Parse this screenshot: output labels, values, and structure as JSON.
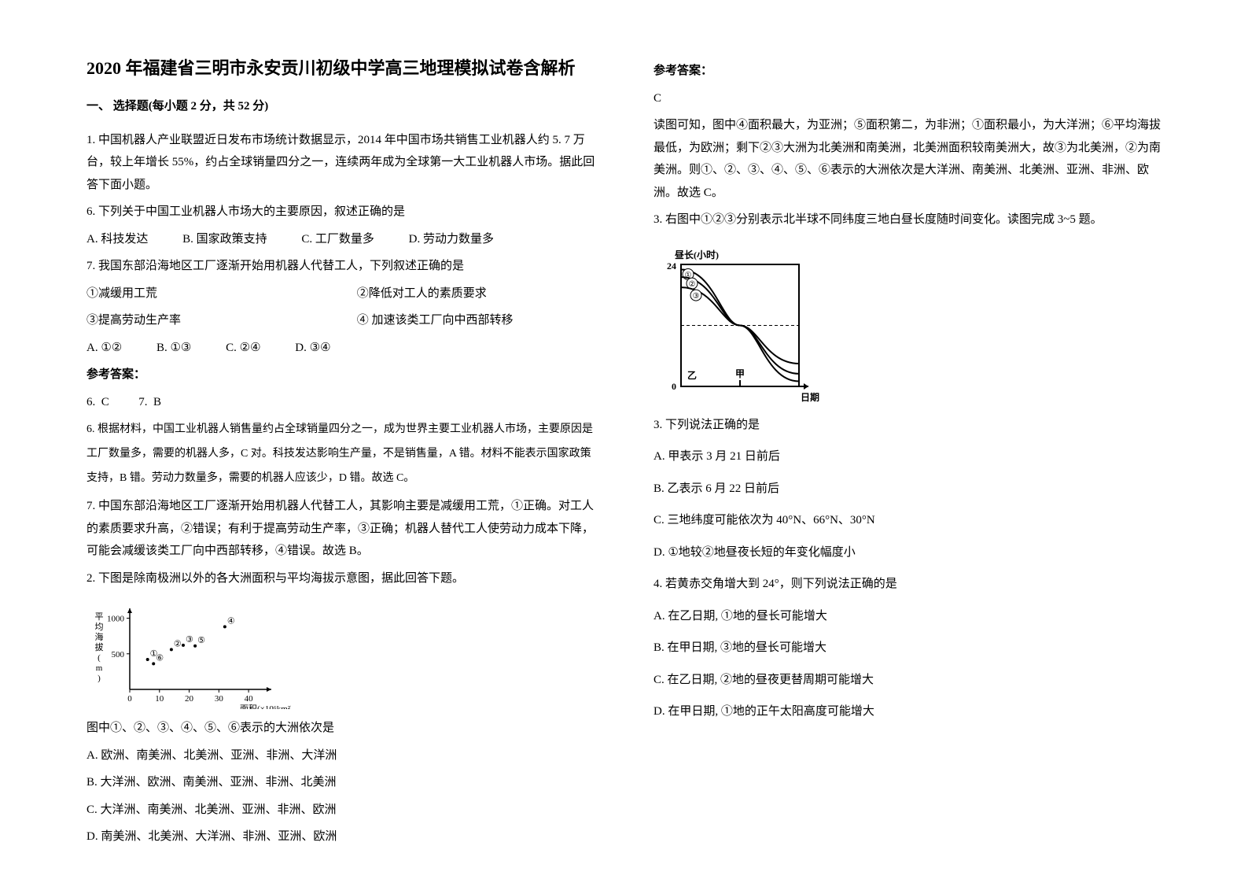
{
  "title": "2020 年福建省三明市永安贡川初级中学高三地理模拟试卷含解析",
  "section1_heading": "一、 选择题(每小题 2 分，共 52 分)",
  "q1": {
    "stem": "1. 中国机器人产业联盟近日发布市场统计数据显示，2014 年中国市场共销售工业机器人约 5. 7 万台，较上年增长 55%，约占全球销量四分之一，连续两年成为全球第一大工业机器人市场。据此回答下面小题。",
    "sub6": "6.  下列关于中国工业机器人市场大的主要原因，叙述正确的是",
    "opts6": {
      "A": "A.  科技发达",
      "B": "B.  国家政策支持",
      "C": "C.  工厂数量多",
      "D": "D.  劳动力数量多"
    },
    "sub7": "7.  我国东部沿海地区工厂逐渐开始用机器人代替工人，下列叙述正确的是",
    "items7": {
      "i1": "①减缓用工荒",
      "i2": "②降低对工人的素质要求",
      "i3": "③提高劳动生产率",
      "i4": "④ 加速该类工厂向中西部转移"
    },
    "opts7": {
      "A": "A.  ①②",
      "B": "B.  ①③",
      "C": "C.  ②④",
      "D": "D.  ③④"
    },
    "answer_label": "参考答案：",
    "answers": "6.  C          7.  B",
    "expl6": "6. 根据材料，中国工业机器人销售量约占全球销量四分之一，成为世界主要工业机器人市场，主要原因是工厂数量多，需要的机器人多，C 对。科技发达影响生产量，不是销售量，A 错。材料不能表示国家政策支持，B 错。劳动力数量多，需要的机器人应该少，D 错。故选 C。",
    "expl7": "7.  中国东部沿海地区工厂逐渐开始用机器人代替工人，其影响主要是减缓用工荒，①正确。对工人的素质要求升高，②错误；有利于提高劳动生产率，③正确；机器人替代工人使劳动力成本下降，可能会减缓该类工厂向中西部转移，④错误。故选 B。"
  },
  "q2": {
    "stem": "2. 下图是除南极洲以外的各大洲面积与平均海拔示意图，据此回答下题。",
    "chart": {
      "type": "scatter",
      "ylabel": "平均海拔(m)",
      "xlabel": "面积(×10⁶km²)",
      "xlim": [
        0,
        45
      ],
      "ylim": [
        0,
        1050
      ],
      "xticks": [
        0,
        10,
        20,
        30,
        40
      ],
      "yticks": [
        500,
        1000
      ],
      "points": [
        {
          "id": "①",
          "x": 6,
          "y": 420
        },
        {
          "id": "②",
          "x": 14,
          "y": 560
        },
        {
          "id": "③",
          "x": 18,
          "y": 620
        },
        {
          "id": "④",
          "x": 32,
          "y": 880
        },
        {
          "id": "⑤",
          "x": 22,
          "y": 610
        },
        {
          "id": "⑥",
          "x": 8,
          "y": 360
        }
      ],
      "axis_color": "#000000",
      "point_color": "#000000",
      "label_fontsize": 11
    },
    "sub": "图中①、②、③、④、⑤、⑥表示的大洲依次是",
    "opts": {
      "A": "A.  欧洲、南美洲、北美洲、亚洲、非洲、大洋洲",
      "B": "B.  大洋洲、欧洲、南美洲、亚洲、非洲、北美洲",
      "C": "C.  大洋洲、南美洲、北美洲、亚洲、非洲、欧洲",
      "D": "D.  南美洲、北美洲、大洋洲、非洲、亚洲、欧洲"
    }
  },
  "q2_answer": {
    "label": "参考答案：",
    "ans": "C",
    "expl": "读图可知，图中④面积最大，为亚洲；⑤面积第二，为非洲；①面积最小，为大洋洲；⑥平均海拔最低，为欧洲；剩下②③大洲为北美洲和南美洲，北美洲面积较南美洲大，故③为北美洲，②为南美洲。则①、②、③、④、⑤、⑥表示的大洲依次是大洋洲、南美洲、北美洲、亚洲、非洲、欧洲。故选 C。"
  },
  "q3": {
    "stem": "3. 右图中①②③分别表示北半球不同纬度三地白昼长度随时间变化。读图完成 3~5 题。",
    "chart": {
      "type": "line",
      "ylabel": "昼长(小时)",
      "xlabel": "日期",
      "ylim": [
        0,
        24
      ],
      "yticks": [
        0,
        24
      ],
      "markers": {
        "jia": "甲",
        "yi": "乙"
      },
      "curves": [
        {
          "id": "①",
          "y0": 23.0,
          "cross_x": 0.5,
          "y1": 1.0,
          "color": "#000000",
          "width": 2
        },
        {
          "id": "②",
          "y0": 21.5,
          "cross_x": 0.5,
          "y1": 2.5,
          "color": "#000000",
          "width": 2
        },
        {
          "id": "③",
          "y0": 19.5,
          "cross_x": 0.5,
          "y1": 4.5,
          "color": "#000000",
          "width": 2
        }
      ],
      "midline_y": 12,
      "axis_color": "#000000",
      "label_fontsize": 12
    },
    "sub3": "3. 下列说法正确的是",
    "opts3": {
      "A": "A. 甲表示 3 月 21 日前后",
      "B": "B. 乙表示 6 月 22 日前后",
      "C": "C. 三地纬度可能依次为 40°N、66°N、30°N",
      "D": "D. ①地较②地昼夜长短的年变化幅度小"
    },
    "sub4": "4. 若黄赤交角增大到 24°，则下列说法正确的是",
    "opts4": {
      "A": "A. 在乙日期, ①地的昼长可能增大",
      "B": "B. 在甲日期, ③地的昼长可能增大",
      "C": "C. 在乙日期, ②地的昼夜更替周期可能增大",
      "D": "D. 在甲日期, ①地的正午太阳高度可能增大"
    }
  }
}
